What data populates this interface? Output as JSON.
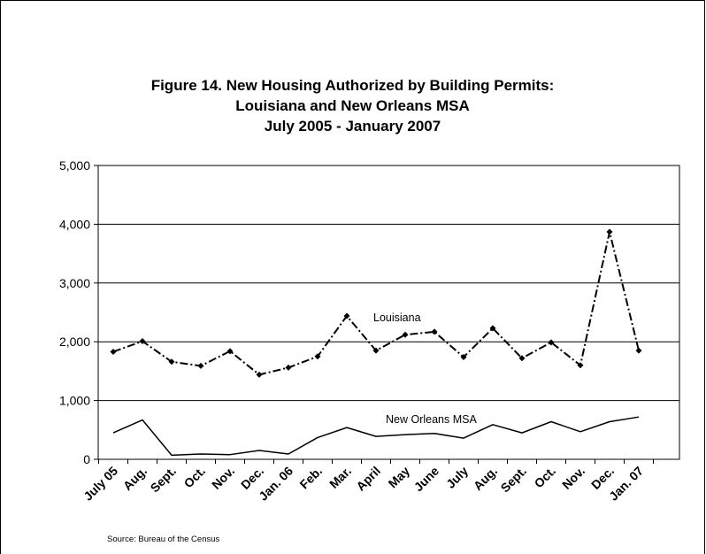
{
  "chart_data": {
    "type": "line",
    "title": [
      "Figure 14. New Housing Authorized by Building Permits:",
      "Louisiana and New Orleans MSA",
      "July 2005 - January 2007"
    ],
    "xlabel": "",
    "ylabel": "",
    "ylim": [
      0,
      5000
    ],
    "yticks": [
      0,
      1000,
      2000,
      3000,
      4000,
      5000
    ],
    "ytick_labels": [
      "0",
      "1,000",
      "2,000",
      "3,000",
      "4,000",
      "5,000"
    ],
    "categories": [
      "July 05",
      "Aug.",
      "Sept.",
      "Oct.",
      "Nov.",
      "Dec.",
      "Jan. 06",
      "Feb.",
      "Mar.",
      "April",
      "May",
      "June",
      "July",
      "Aug.",
      "Sept.",
      "Oct.",
      "Nov.",
      "Dec.",
      "Jan. 07"
    ],
    "grid": "horizontal",
    "series": [
      {
        "name": "Louisiana",
        "style": "dash-dot with diamond markers",
        "values": [
          1830,
          2010,
          1660,
          1590,
          1840,
          1440,
          1560,
          1750,
          2440,
          1850,
          2120,
          2170,
          1740,
          2230,
          1720,
          1990,
          1600,
          3870,
          1850
        ]
      },
      {
        "name": "New Orleans MSA",
        "style": "solid",
        "values": [
          450,
          670,
          70,
          90,
          80,
          150,
          90,
          370,
          540,
          390,
          420,
          440,
          360,
          590,
          450,
          640,
          470,
          640,
          720
        ]
      }
    ]
  },
  "source": "Source: Bureau of the Census"
}
